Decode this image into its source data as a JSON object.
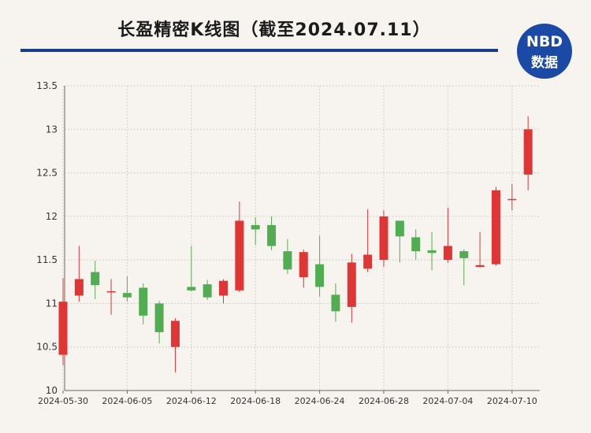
{
  "title": "长盈精密K线图（截至2024.07.11）",
  "logo": {
    "line1": "NBD",
    "line2": "数据"
  },
  "colors": {
    "up": "#e03535",
    "down": "#52ad52",
    "brand": "#1b4aa6",
    "rule": "#1a3c8c"
  },
  "chart_data": {
    "type": "candlestick",
    "ylim": [
      10,
      13.5
    ],
    "y_ticks": [
      10,
      10.5,
      11,
      11.5,
      12,
      12.5,
      13,
      13.5
    ],
    "x_tick_labels": [
      "2024-05-30",
      "2024-06-05",
      "2024-06-12",
      "2024-06-18",
      "2024-06-24",
      "2024-06-28",
      "2024-07-04",
      "2024-07-10"
    ],
    "x_tick_indices": [
      0,
      4,
      8,
      12,
      16,
      20,
      24,
      28
    ],
    "grid": true,
    "candles": [
      {
        "date": "2024-05-30",
        "open": 10.41,
        "close": 11.02,
        "high": 11.29,
        "low": 10.29
      },
      {
        "date": "2024-05-31",
        "open": 11.09,
        "close": 11.28,
        "high": 11.66,
        "low": 11.02
      },
      {
        "date": "2024-06-03",
        "open": 11.36,
        "close": 11.21,
        "high": 11.49,
        "low": 11.05
      },
      {
        "date": "2024-06-04",
        "open": 11.13,
        "close": 11.14,
        "high": 11.28,
        "low": 10.87
      },
      {
        "date": "2024-06-05",
        "open": 11.12,
        "close": 11.07,
        "high": 11.31,
        "low": 11.02
      },
      {
        "date": "2024-06-06",
        "open": 11.18,
        "close": 10.86,
        "high": 11.23,
        "low": 10.76
      },
      {
        "date": "2024-06-07",
        "open": 11.0,
        "close": 10.67,
        "high": 11.03,
        "low": 10.54
      },
      {
        "date": "2024-06-11",
        "open": 10.5,
        "close": 10.8,
        "high": 10.83,
        "low": 10.21
      },
      {
        "date": "2024-06-12",
        "open": 11.19,
        "close": 11.15,
        "high": 11.66,
        "low": 11.14
      },
      {
        "date": "2024-06-13",
        "open": 11.22,
        "close": 11.07,
        "high": 11.27,
        "low": 11.04
      },
      {
        "date": "2024-06-14",
        "open": 11.09,
        "close": 11.26,
        "high": 11.28,
        "low": 11.0
      },
      {
        "date": "2024-06-17",
        "open": 11.15,
        "close": 11.95,
        "high": 12.17,
        "low": 11.13
      },
      {
        "date": "2024-06-18",
        "open": 11.9,
        "close": 11.85,
        "high": 11.99,
        "low": 11.67
      },
      {
        "date": "2024-06-19",
        "open": 11.9,
        "close": 11.66,
        "high": 12.0,
        "low": 11.61
      },
      {
        "date": "2024-06-20",
        "open": 11.6,
        "close": 11.39,
        "high": 11.74,
        "low": 11.34
      },
      {
        "date": "2024-06-21",
        "open": 11.3,
        "close": 11.59,
        "high": 11.62,
        "low": 11.18
      },
      {
        "date": "2024-06-24",
        "open": 11.45,
        "close": 11.19,
        "high": 11.78,
        "low": 11.08
      },
      {
        "date": "2024-06-25",
        "open": 11.1,
        "close": 10.91,
        "high": 11.23,
        "low": 10.79
      },
      {
        "date": "2024-06-26",
        "open": 10.96,
        "close": 11.47,
        "high": 11.57,
        "low": 10.78
      },
      {
        "date": "2024-06-27",
        "open": 11.4,
        "close": 11.56,
        "high": 12.08,
        "low": 11.36
      },
      {
        "date": "2024-06-28",
        "open": 11.5,
        "close": 12.0,
        "high": 12.07,
        "low": 11.42
      },
      {
        "date": "2024-07-01",
        "open": 11.95,
        "close": 11.77,
        "high": 11.95,
        "low": 11.47
      },
      {
        "date": "2024-07-02",
        "open": 11.76,
        "close": 11.6,
        "high": 11.85,
        "low": 11.5
      },
      {
        "date": "2024-07-03",
        "open": 11.61,
        "close": 11.58,
        "high": 11.82,
        "low": 11.38
      },
      {
        "date": "2024-07-04",
        "open": 11.5,
        "close": 11.66,
        "high": 12.1,
        "low": 11.47
      },
      {
        "date": "2024-07-05",
        "open": 11.6,
        "close": 11.52,
        "high": 11.62,
        "low": 11.21
      },
      {
        "date": "2024-07-08",
        "open": 11.42,
        "close": 11.44,
        "high": 11.82,
        "low": 11.42
      },
      {
        "date": "2024-07-09",
        "open": 11.45,
        "close": 12.3,
        "high": 12.34,
        "low": 11.43
      },
      {
        "date": "2024-07-10",
        "open": 12.2,
        "close": 12.2,
        "high": 12.37,
        "low": 12.07
      },
      {
        "date": "2024-07-11",
        "open": 12.48,
        "close": 13.0,
        "high": 13.15,
        "low": 12.3
      }
    ]
  }
}
